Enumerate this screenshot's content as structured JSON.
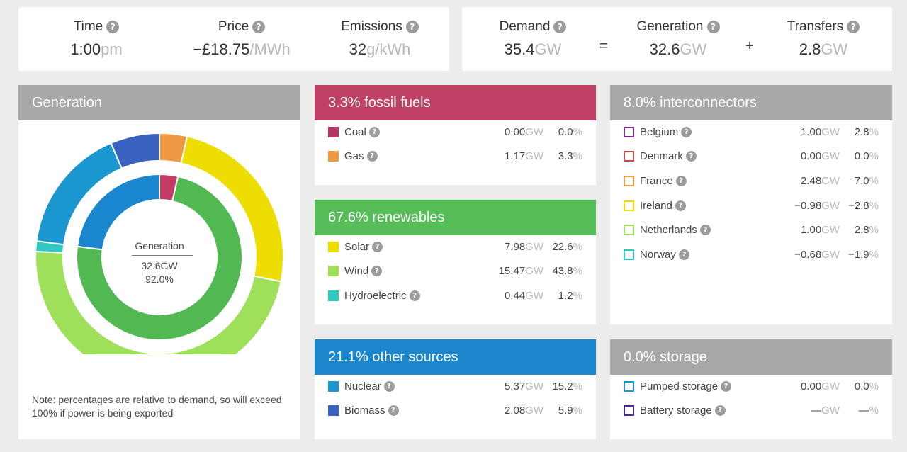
{
  "summary_left": {
    "time": {
      "label": "Time",
      "value": "1:00",
      "unit": "pm"
    },
    "price": {
      "label": "Price",
      "value": "−£18.75",
      "unit": "/MWh"
    },
    "emissions": {
      "label": "Emissions",
      "value": "32",
      "unit": "g/kWh"
    }
  },
  "summary_right": {
    "demand": {
      "label": "Demand",
      "value": "35.4",
      "unit": "GW"
    },
    "eq": "=",
    "generation": {
      "label": "Generation",
      "value": "32.6",
      "unit": "GW"
    },
    "plus": "+",
    "transfers": {
      "label": "Transfers",
      "value": "2.8",
      "unit": "GW"
    }
  },
  "help_glyph": "?",
  "generation_panel": {
    "title": "Generation",
    "center_title": "Generation",
    "center_value": "32.6GW",
    "center_pct": "92.0%",
    "note": "Note: percentages are relative to demand, so will exceed 100% if power is being exported"
  },
  "colors": {
    "gray_header": "#a8a8a8",
    "fossil_header": "#bf4266",
    "renewables_header": "#56bd58",
    "other_header": "#1b86cc",
    "coal": "#b33665",
    "gas": "#ee9a45",
    "solar": "#eedd00",
    "wind": "#9ee05a",
    "hydro": "#2ec9c0",
    "nuclear": "#1b97d0",
    "biomass": "#3a62c0",
    "inner_fossil": "#c43c63",
    "inner_renew": "#52b952",
    "inner_other": "#1b86d0"
  },
  "fossil": {
    "title": "3.3% fossil fuels",
    "rows": [
      {
        "name": "Coal",
        "gw": "0.00",
        "unit": "GW",
        "pct": "0.0",
        "pct_unit": "%",
        "color": "#b33665"
      },
      {
        "name": "Gas",
        "gw": "1.17",
        "unit": "GW",
        "pct": "3.3",
        "pct_unit": "%",
        "color": "#ee9a45"
      }
    ]
  },
  "renewables": {
    "title": "67.6% renewables",
    "rows": [
      {
        "name": "Solar",
        "gw": "7.98",
        "unit": "GW",
        "pct": "22.6",
        "pct_unit": "%",
        "color": "#eedd00"
      },
      {
        "name": "Wind",
        "gw": "15.47",
        "unit": "GW",
        "pct": "43.8",
        "pct_unit": "%",
        "color": "#9ee05a"
      },
      {
        "name": "Hydroelectric",
        "gw": "0.44",
        "unit": "GW",
        "pct": "1.2",
        "pct_unit": "%",
        "color": "#2ec9c0"
      }
    ]
  },
  "other": {
    "title": "21.1% other sources",
    "rows": [
      {
        "name": "Nuclear",
        "gw": "5.37",
        "unit": "GW",
        "pct": "15.2",
        "pct_unit": "%",
        "color": "#1b97d0"
      },
      {
        "name": "Biomass",
        "gw": "2.08",
        "unit": "GW",
        "pct": "5.9",
        "pct_unit": "%",
        "color": "#3a62c0"
      }
    ]
  },
  "interconnectors": {
    "title": "8.0% interconnectors",
    "rows": [
      {
        "name": "Belgium",
        "gw": "1.00",
        "unit": "GW",
        "pct": "2.8",
        "pct_unit": "%",
        "color": "#7a2a8a"
      },
      {
        "name": "Denmark",
        "gw": "0.00",
        "unit": "GW",
        "pct": "0.0",
        "pct_unit": "%",
        "color": "#c44a4a"
      },
      {
        "name": "France",
        "gw": "2.48",
        "unit": "GW",
        "pct": "7.0",
        "pct_unit": "%",
        "color": "#ee9a45"
      },
      {
        "name": "Ireland",
        "gw": "−0.98",
        "unit": "GW",
        "pct": "−2.8",
        "pct_unit": "%",
        "color": "#eedd00"
      },
      {
        "name": "Netherlands",
        "gw": "1.00",
        "unit": "GW",
        "pct": "2.8",
        "pct_unit": "%",
        "color": "#9ee05a"
      },
      {
        "name": "Norway",
        "gw": "−0.68",
        "unit": "GW",
        "pct": "−1.9",
        "pct_unit": "%",
        "color": "#2ec9c0"
      }
    ]
  },
  "storage": {
    "title": "0.0% storage",
    "rows": [
      {
        "name": "Pumped storage",
        "gw": "0.00",
        "unit": "GW",
        "pct": "0.0",
        "pct_unit": "%",
        "color": "#1b97d0"
      },
      {
        "name": "Battery storage",
        "gw": "—",
        "unit": "GW",
        "pct": "—",
        "pct_unit": "%",
        "color": "#4a2a9a"
      }
    ]
  },
  "donut": {
    "outer": [
      {
        "name": "Coal",
        "value": 0.0,
        "color": "#b33665"
      },
      {
        "name": "Gas",
        "value": 1.17,
        "color": "#ee9a45"
      },
      {
        "name": "Solar",
        "value": 7.98,
        "color": "#eedd00"
      },
      {
        "name": "Wind",
        "value": 15.47,
        "color": "#9ee05a"
      },
      {
        "name": "Hydroelectric",
        "value": 0.44,
        "color": "#2ec9c0"
      },
      {
        "name": "Nuclear",
        "value": 5.37,
        "color": "#1b97d0"
      },
      {
        "name": "Biomass",
        "value": 2.08,
        "color": "#3a62c0"
      }
    ],
    "inner": [
      {
        "name": "fossil fuels",
        "value": 1.17,
        "color": "#c43c63"
      },
      {
        "name": "renewables",
        "value": 23.89,
        "color": "#52b952"
      },
      {
        "name": "other sources",
        "value": 7.45,
        "color": "#1b86d0"
      }
    ]
  }
}
